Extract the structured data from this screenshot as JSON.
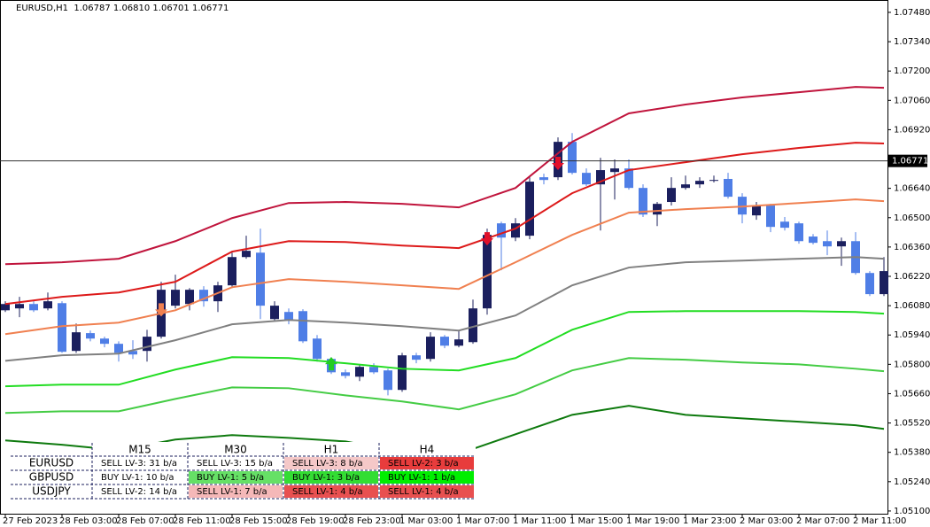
{
  "header": "EURUSD,H1  1.06787 1.06810 1.06701 1.06771",
  "chart_data": {
    "type": "candlestick",
    "categories": [
      "27 Feb 2023",
      null,
      null,
      null,
      "28 Feb 03:00",
      null,
      null,
      null,
      "28 Feb 07:00",
      null,
      null,
      null,
      "28 Feb 11:00",
      null,
      null,
      null,
      "28 Feb 15:00",
      null,
      null,
      null,
      "28 Feb 19:00",
      null,
      null,
      null,
      "28 Feb 23:00",
      null,
      null,
      null,
      "1 Mar 03:00",
      null,
      null,
      null,
      "1 Mar 07:00",
      null,
      null,
      null,
      "1 Mar 11:00",
      null,
      null,
      null,
      "1 Mar 15:00",
      null,
      null,
      null,
      "1 Mar 19:00",
      null,
      null,
      null,
      "1 Mar 23:00",
      null,
      null,
      null,
      "2 Mar 03:00",
      null,
      null,
      null,
      "2 Mar 07:00",
      null,
      null,
      null,
      "2 Mar 11:00",
      null,
      null
    ],
    "open": [
      1.06058,
      1.06067,
      1.06088,
      1.06067,
      1.06092,
      1.05864,
      1.05949,
      1.05923,
      1.05898,
      1.05864,
      1.05864,
      1.05932,
      1.0608,
      1.06088,
      1.06156,
      1.06101,
      1.06177,
      1.06312,
      1.06333,
      1.06016,
      1.0605,
      1.06054,
      1.05923,
      1.05826,
      1.05762,
      1.05741,
      1.05788,
      1.05771,
      1.05678,
      1.05843,
      1.05826,
      1.05932,
      1.05889,
      1.05906,
      1.06067,
      1.06473,
      1.06405,
      1.06414,
      1.06693,
      1.06693,
      1.06862,
      1.06714,
      1.06659,
      1.06718,
      1.06735,
      1.06642,
      1.06515,
      1.06575,
      1.06642,
      1.06659,
      1.06676,
      1.06685,
      1.066,
      1.06511,
      1.06558,
      1.06481,
      1.06473,
      1.0641,
      1.06388,
      1.06363,
      1.06388,
      1.06236,
      1.06135
    ],
    "high": [
      1.06101,
      1.06122,
      1.06101,
      1.06143,
      1.06101,
      1.05995,
      1.05961,
      1.05932,
      1.0591,
      1.05915,
      1.05965,
      1.06194,
      1.06228,
      1.06164,
      1.06173,
      1.06194,
      1.06333,
      1.06414,
      1.06448,
      1.06101,
      1.06067,
      1.06063,
      1.0594,
      1.05834,
      1.05775,
      1.058,
      1.05805,
      1.05779,
      1.05855,
      1.05855,
      1.05953,
      1.0594,
      1.05965,
      1.06109,
      1.06448,
      1.06481,
      1.06498,
      1.06693,
      1.0671,
      1.06883,
      1.06904,
      1.06735,
      1.06786,
      1.06778,
      1.06778,
      1.06659,
      1.06575,
      1.06693,
      1.06701,
      1.06693,
      1.06701,
      1.06714,
      1.06617,
      1.06575,
      1.06566,
      1.06503,
      1.06481,
      1.06422,
      1.06439,
      1.06405,
      1.06431,
      1.06245,
      1.06312
    ],
    "low": [
      1.0605,
      1.06025,
      1.0605,
      1.06058,
      1.05855,
      1.05855,
      1.0591,
      1.05881,
      1.05813,
      1.05826,
      1.05813,
      1.05923,
      1.06067,
      1.06058,
      1.06075,
      1.0605,
      1.06164,
      1.06304,
      1.06016,
      1.06008,
      1.05991,
      1.05902,
      1.05813,
      1.05754,
      1.05733,
      1.0572,
      1.05754,
      1.05652,
      1.05669,
      1.05805,
      1.05813,
      1.05877,
      1.05881,
      1.05898,
      1.06037,
      1.06249,
      1.06388,
      1.06397,
      1.06659,
      1.0668,
      1.06706,
      1.06651,
      1.06439,
      1.06587,
      1.06634,
      1.06503,
      1.0646,
      1.06558,
      1.06634,
      1.06642,
      1.06668,
      1.06591,
      1.06473,
      1.0649,
      1.06431,
      1.06439,
      1.06376,
      1.06372,
      1.06321,
      1.0627,
      1.06228,
      1.06126,
      1.06126
    ],
    "close": [
      1.06088,
      1.06088,
      1.06058,
      1.06101,
      1.0586,
      1.05953,
      1.05923,
      1.05898,
      1.05855,
      1.05847,
      1.05932,
      1.06156,
      1.06156,
      1.06156,
      1.06101,
      1.06177,
      1.06312,
      1.06342,
      1.0608,
      1.0608,
      1.06008,
      1.0591,
      1.05826,
      1.05762,
      1.05745,
      1.05788,
      1.05762,
      1.05678,
      1.05843,
      1.05822,
      1.05932,
      1.05889,
      1.05919,
      1.06067,
      1.06418,
      1.06405,
      1.06473,
      1.06672,
      1.0668,
      1.06862,
      1.06714,
      1.06659,
      1.06727,
      1.06735,
      1.06642,
      1.06515,
      1.06566,
      1.06642,
      1.06659,
      1.06676,
      1.0668,
      1.066,
      1.06515,
      1.06558,
      1.06456,
      1.06452,
      1.06388,
      1.0638,
      1.06363,
      1.06388,
      1.06236,
      1.06135,
      1.06245
    ],
    "up_color": "#1b1f5e",
    "down_color": "#4f7ee6",
    "ylim": [
      1.05087,
      1.07539
    ],
    "yticks": [
      {
        "value": 1.0748,
        "label": "1.07480"
      },
      {
        "value": 1.0734,
        "label": "1.07340"
      },
      {
        "value": 1.072,
        "label": "1.07200"
      },
      {
        "value": 1.0706,
        "label": "1.07060"
      },
      {
        "value": 1.0692,
        "label": "1.06920"
      },
      {
        "value": 1.0664,
        "label": "1.06640"
      },
      {
        "value": 1.065,
        "label": "1.06500"
      },
      {
        "value": 1.0636,
        "label": "1.06360"
      },
      {
        "value": 1.0622,
        "label": "1.06220"
      },
      {
        "value": 1.0608,
        "label": "1.06080"
      },
      {
        "value": 1.0594,
        "label": "1.05940"
      },
      {
        "value": 1.058,
        "label": "1.05800"
      },
      {
        "value": 1.0566,
        "label": "1.05660"
      },
      {
        "value": 1.0552,
        "label": "1.05520"
      },
      {
        "value": 1.0538,
        "label": "1.05380"
      },
      {
        "value": 1.0524,
        "label": "1.05240"
      },
      {
        "value": 1.051,
        "label": "1.05100"
      }
    ],
    "current_price": {
      "value": 1.06771,
      "label": "1.06771"
    },
    "bands": [
      {
        "color": "#c0143c",
        "x": [
          0,
          4,
          8,
          12,
          16,
          20,
          24,
          28,
          32,
          36,
          40,
          44,
          48,
          52,
          56,
          60,
          62
        ],
        "values": [
          1.06278,
          1.06287,
          1.06304,
          1.06388,
          1.06498,
          1.0657,
          1.06575,
          1.06566,
          1.06549,
          1.06642,
          1.06862,
          1.06998,
          1.0704,
          1.07074,
          1.07099,
          1.07124,
          1.0712
        ]
      },
      {
        "color": "#dd1a1a",
        "x": [
          0,
          4,
          8,
          12,
          16,
          20,
          24,
          28,
          32,
          36,
          40,
          44,
          48,
          52,
          56,
          60,
          62
        ],
        "values": [
          1.06088,
          1.06122,
          1.06143,
          1.06194,
          1.06338,
          1.06388,
          1.06384,
          1.06367,
          1.06355,
          1.06448,
          1.06617,
          1.06727,
          1.06765,
          1.06803,
          1.06833,
          1.06858,
          1.06854
        ]
      },
      {
        "color": "#f08050",
        "x": [
          0,
          4,
          8,
          12,
          16,
          20,
          24,
          28,
          32,
          36,
          40,
          44,
          48,
          52,
          56,
          60,
          62
        ],
        "values": [
          1.05944,
          1.05982,
          1.05999,
          1.06058,
          1.06168,
          1.06207,
          1.06194,
          1.06177,
          1.0616,
          1.06287,
          1.06418,
          1.06524,
          1.06541,
          1.06553,
          1.0657,
          1.06587,
          1.06579
        ]
      },
      {
        "color": "#808080",
        "x": [
          0,
          4,
          8,
          12,
          16,
          20,
          24,
          28,
          32,
          36,
          40,
          44,
          48,
          52,
          56,
          60,
          62
        ],
        "values": [
          1.05817,
          1.05843,
          1.05851,
          1.05915,
          1.05991,
          1.06012,
          1.05999,
          1.05982,
          1.05961,
          1.06033,
          1.06177,
          1.06262,
          1.06287,
          1.06295,
          1.06304,
          1.06312,
          1.06304
        ]
      },
      {
        "color": "#22dd22",
        "x": [
          0,
          4,
          8,
          12,
          16,
          20,
          24,
          28,
          32,
          36,
          40,
          44,
          48,
          52,
          56,
          60,
          62
        ],
        "values": [
          1.05695,
          1.05703,
          1.05703,
          1.05775,
          1.05834,
          1.0583,
          1.05805,
          1.05779,
          1.05771,
          1.0583,
          1.05965,
          1.0605,
          1.06054,
          1.06054,
          1.06054,
          1.0605,
          1.06042
        ]
      },
      {
        "color": "#44cc44",
        "x": [
          0,
          4,
          8,
          12,
          16,
          20,
          24,
          28,
          32,
          36,
          40,
          44,
          48,
          52,
          56,
          60,
          62
        ],
        "values": [
          1.05568,
          1.05576,
          1.05576,
          1.05635,
          1.0569,
          1.05686,
          1.05652,
          1.05623,
          1.05585,
          1.05657,
          1.05771,
          1.0583,
          1.05822,
          1.05809,
          1.058,
          1.05779,
          1.05767
        ]
      },
      {
        "color": "#0e7a0e",
        "x": [
          0,
          4,
          8,
          12,
          16,
          20,
          24,
          28,
          32,
          36,
          40,
          44,
          48,
          52,
          56,
          60,
          62
        ],
        "values": [
          1.05437,
          1.05416,
          1.0539,
          1.05441,
          1.05462,
          1.05449,
          1.05432,
          1.05382,
          1.05373,
          1.05466,
          1.05559,
          1.05602,
          1.05559,
          1.05542,
          1.05526,
          1.05509,
          1.05492
        ]
      }
    ],
    "markers": [
      {
        "x": 11,
        "value": 1.06058,
        "direction": "down",
        "color": "#f08050"
      },
      {
        "x": 23,
        "value": 1.05805,
        "direction": "up",
        "color": "#22cc22"
      },
      {
        "x": 34,
        "value": 1.06397,
        "direction": "down",
        "color": "#e0102a"
      },
      {
        "x": 39,
        "value": 1.06757,
        "direction": "down",
        "color": "#e0102a"
      }
    ]
  },
  "table": {
    "columns": [
      "M15",
      "M30",
      "H1",
      "H4"
    ],
    "rows": [
      {
        "symbol": "EURUSD",
        "cells": [
          {
            "text": "SELL LV-3: 31 b/a",
            "color": "#ffffff"
          },
          {
            "text": "SELL LV-3: 15 b/a",
            "color": "#ffffff"
          },
          {
            "text": "SELL LV-3: 8 b/a",
            "color": "#f5c8c8"
          },
          {
            "text": "SELL LV-2: 3 b/a",
            "color": "#e83c3c"
          }
        ]
      },
      {
        "symbol": "GBPUSD",
        "cells": [
          {
            "text": "BUY LV-1: 10 b/a",
            "color": "#ffffff"
          },
          {
            "text": "BUY LV-1: 5 b/a",
            "color": "#66e066"
          },
          {
            "text": "BUY LV-1: 3 b/a",
            "color": "#33dd33"
          },
          {
            "text": "BUY LV-1: 1 b/a",
            "color": "#00ee00"
          }
        ]
      },
      {
        "symbol": "USDJPY",
        "cells": [
          {
            "text": "SELL LV-2: 14 b/a",
            "color": "#ffffff"
          },
          {
            "text": "SELL LV-1: 7 b/a",
            "color": "#f5b8b8"
          },
          {
            "text": "SELL LV-1: 4 b/a",
            "color": "#e85050"
          },
          {
            "text": "SELL LV-1: 4 b/a",
            "color": "#e85050"
          }
        ]
      }
    ]
  }
}
